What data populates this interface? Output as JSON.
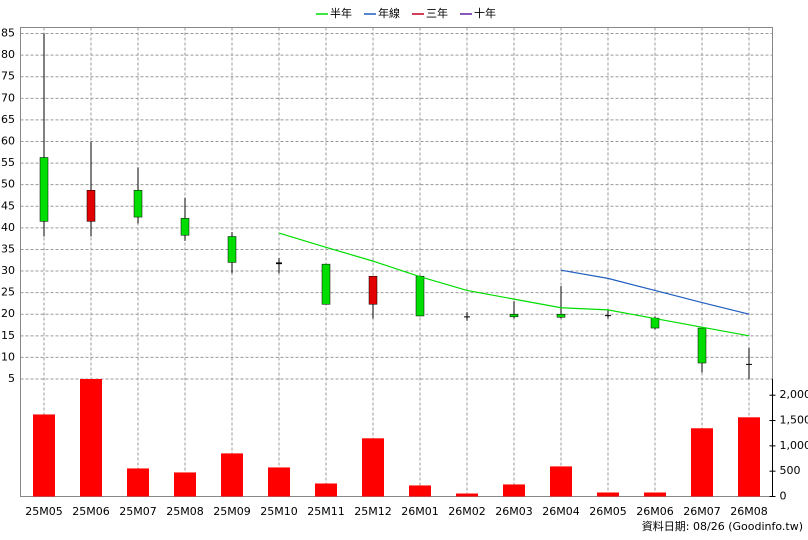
{
  "chart_data": {
    "type": "candlestick",
    "categories": [
      "25M05",
      "25M06",
      "25M07",
      "25M08",
      "25M09",
      "25M10",
      "25M11",
      "25M12",
      "26M01",
      "26M02",
      "26M03",
      "26M04",
      "26M05",
      "26M06",
      "26M07",
      "26M08"
    ],
    "open": [
      56.3,
      41.5,
      48.7,
      42.2,
      38,
      32,
      31.6,
      22.3,
      28.8,
      19.5,
      20,
      20,
      19.8,
      19.1,
      16.8,
      8.5
    ],
    "high": [
      85,
      60,
      54,
      47,
      39,
      33,
      31.6,
      28.8,
      29,
      20.5,
      23,
      26.5,
      21,
      19.5,
      16.8,
      12.3
    ],
    "low": [
      38,
      38,
      41,
      37,
      29.5,
      29.5,
      22.3,
      19,
      19.5,
      18.5,
      19,
      19,
      19,
      16.5,
      6.5,
      5
    ],
    "close": [
      41.5,
      48.7,
      42.5,
      38.3,
      32,
      31.6,
      22.3,
      28.8,
      19.6,
      19.3,
      19.4,
      19.3,
      19.6,
      16.8,
      8.7,
      8.3
    ],
    "volume": [
      1620,
      2320,
      554,
      475,
      851,
      574,
      257,
      1149,
      218,
      59,
      238,
      594,
      79,
      79,
      1347,
      1564
    ],
    "up_color": "#e00000",
    "down_color": "#00dd00",
    "volume_color": "#ff0000",
    "series": [
      {
        "name": "半年",
        "color": "#00dd00",
        "values": [
          null,
          null,
          null,
          null,
          null,
          38.8,
          35.5,
          32.3,
          28.7,
          25.5,
          23.5,
          21.5,
          21,
          19,
          17,
          15
        ]
      },
      {
        "name": "年線",
        "color": "#1f5fbf",
        "values": [
          null,
          null,
          null,
          null,
          null,
          null,
          null,
          null,
          null,
          null,
          null,
          30.2,
          28.3,
          25.5,
          22.7,
          20
        ]
      },
      {
        "name": "三年",
        "color": "#c00020",
        "values": [
          null,
          null,
          null,
          null,
          null,
          null,
          null,
          null,
          null,
          null,
          null,
          null,
          null,
          null,
          null,
          null
        ]
      },
      {
        "name": "十年",
        "color": "#6020a0",
        "values": [
          null,
          null,
          null,
          null,
          null,
          null,
          null,
          null,
          null,
          null,
          null,
          null,
          null,
          null,
          null,
          null
        ]
      }
    ],
    "ylim": [
      5,
      86.4
    ],
    "yticks": [
      5,
      10,
      15,
      20,
      25,
      30,
      35,
      40,
      45,
      50,
      55,
      60,
      65,
      70,
      75,
      80,
      85
    ],
    "y2lim": [
      0,
      2320
    ],
    "y2ticks": [
      0,
      500,
      {
        "value": 1000,
        "label": "1,000"
      },
      {
        "value": 1500,
        "label": "1,500"
      },
      {
        "value": 2000,
        "label": "2,000"
      }
    ],
    "grid": true,
    "footer": "資料日期: 08/26  (Goodinfo.tw)"
  }
}
